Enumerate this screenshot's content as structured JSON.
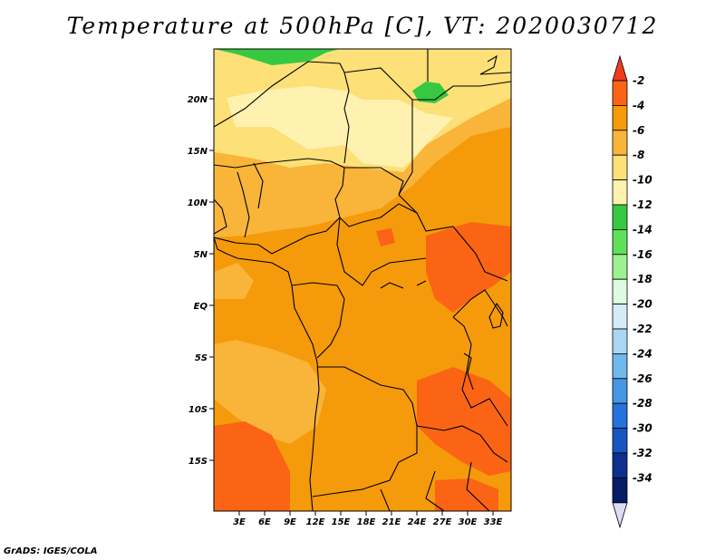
{
  "title": "Temperature at 500hPa [C], VT: 2020030712",
  "footer": "GrADS: IGES/COLA",
  "map": {
    "lat_labels": [
      "20N",
      "15N",
      "10N",
      "5N",
      "EQ",
      "5S",
      "10S",
      "15S"
    ],
    "lon_labels": [
      "3E",
      "6E",
      "9E",
      "12E",
      "15E",
      "18E",
      "21E",
      "24E",
      "27E",
      "30E",
      "33E"
    ]
  },
  "colorbar": {
    "labels": [
      "-2",
      "-4",
      "-6",
      "-8",
      "-10",
      "-12",
      "-14",
      "-16",
      "-18",
      "-20",
      "-22",
      "-24",
      "-26",
      "-28",
      "-30",
      "-32",
      "-34"
    ],
    "colors": [
      "#f03c1e",
      "#fa6414",
      "#f59a0a",
      "#f9b43a",
      "#fde078",
      "#fff2b0",
      "#37c842",
      "#5fe05a",
      "#9ef093",
      "#dcfbe0",
      "#d4ecf8",
      "#a9d7f3",
      "#6fb8ec",
      "#4497e2",
      "#2472db",
      "#1655c0",
      "#0d2f8e",
      "#061c66",
      "#dcdcf5"
    ]
  }
}
